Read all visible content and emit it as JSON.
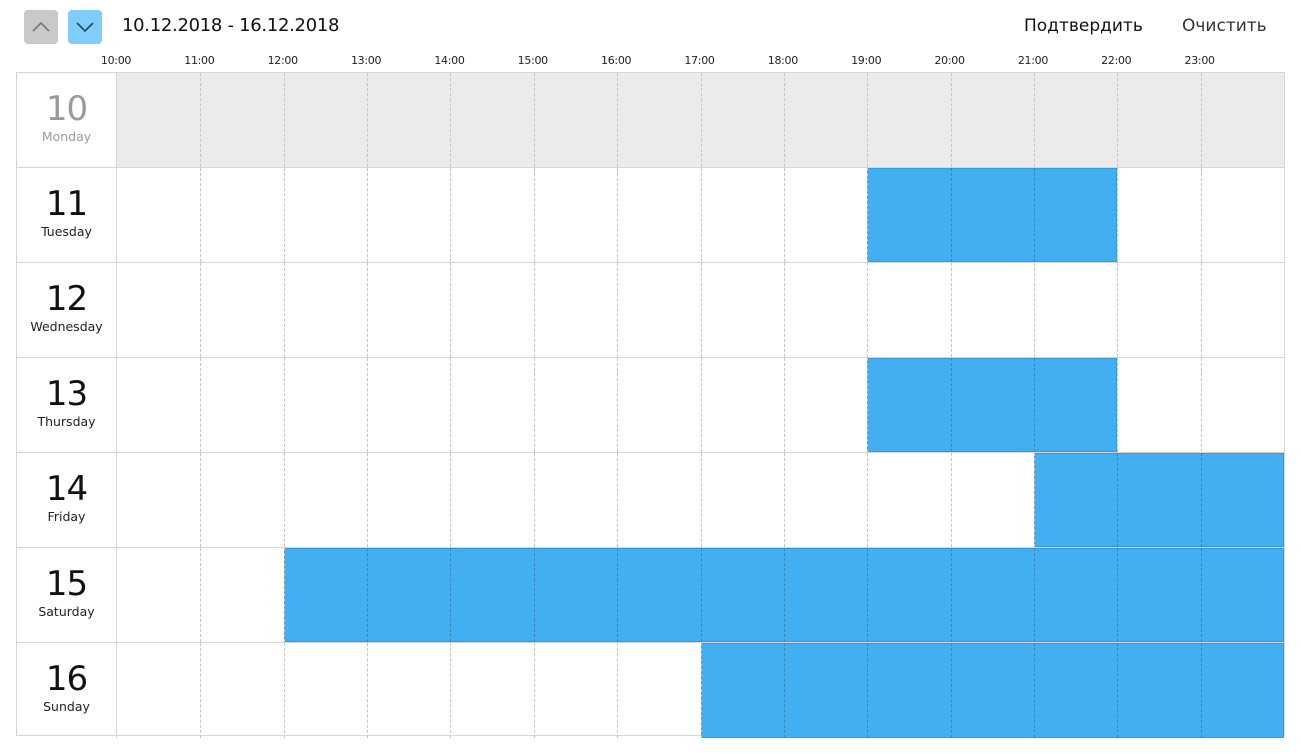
{
  "header": {
    "prev_icon": "chevron-up-icon",
    "next_icon": "chevron-down-icon",
    "date_range": "10.12.2018 - 16.12.2018",
    "confirm_label": "Подтвердить",
    "clear_label": "Очистить",
    "colors": {
      "prev_button": "#c9c9c9",
      "next_button": "#7fcdfa"
    }
  },
  "hours": [
    "10:00",
    "11:00",
    "12:00",
    "13:00",
    "14:00",
    "15:00",
    "16:00",
    "17:00",
    "18:00",
    "19:00",
    "20:00",
    "21:00",
    "22:00",
    "23:00"
  ],
  "day_start_hour": 10,
  "day_end_hour": 24,
  "colors": {
    "selected": "#42aff3",
    "disabled": "#ebebeb"
  },
  "days": [
    {
      "num": "10",
      "name": "Monday",
      "disabled": true,
      "blocks": []
    },
    {
      "num": "11",
      "name": "Tuesday",
      "disabled": false,
      "blocks": [
        {
          "start": 19,
          "end": 22
        }
      ]
    },
    {
      "num": "12",
      "name": "Wednesday",
      "disabled": false,
      "blocks": []
    },
    {
      "num": "13",
      "name": "Thursday",
      "disabled": false,
      "blocks": [
        {
          "start": 19,
          "end": 22
        }
      ]
    },
    {
      "num": "14",
      "name": "Friday",
      "disabled": false,
      "blocks": [
        {
          "start": 21,
          "end": 24
        }
      ]
    },
    {
      "num": "15",
      "name": "Saturday",
      "disabled": false,
      "blocks": [
        {
          "start": 12,
          "end": 24
        }
      ]
    },
    {
      "num": "16",
      "name": "Sunday",
      "disabled": false,
      "blocks": [
        {
          "start": 17,
          "end": 24
        }
      ]
    }
  ]
}
